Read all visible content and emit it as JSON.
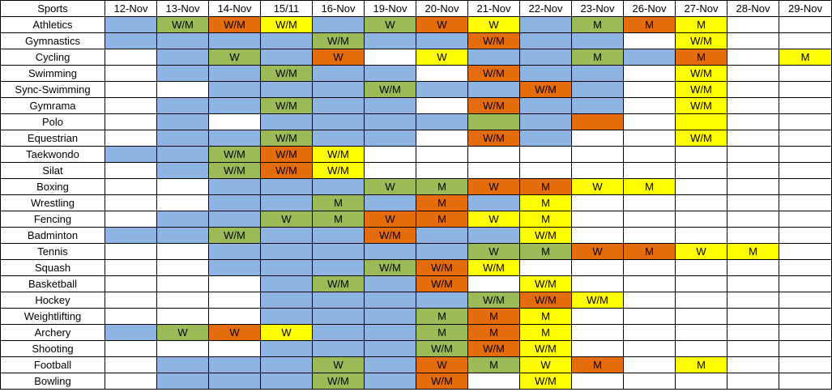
{
  "colors": {
    "b": "#8eb4e3",
    "g": "#9bbb59",
    "o": "#e46c0a",
    "y": "#ffff00",
    "w": "#ffffff"
  },
  "header": {
    "first": "Sports",
    "dates": [
      "12-Nov",
      "13-Nov",
      "14-Nov",
      "15/11",
      "16-Nov",
      "19-Nov",
      "20-Nov",
      "21-Nov",
      "22-Nov",
      "23-Nov",
      "26-Nov",
      "27-Nov",
      "28-Nov",
      "29-Nov"
    ]
  },
  "rows": [
    {
      "sport": "Athletics",
      "cells": [
        [
          "b",
          ""
        ],
        [
          "g",
          "W/M"
        ],
        [
          "o",
          "W/M"
        ],
        [
          "y",
          "W/M"
        ],
        [
          "b",
          ""
        ],
        [
          "g",
          "W"
        ],
        [
          "o",
          "W"
        ],
        [
          "y",
          "W"
        ],
        [
          "b",
          ""
        ],
        [
          "g",
          "M"
        ],
        [
          "o",
          "M"
        ],
        [
          "y",
          "M"
        ],
        [
          "w",
          ""
        ],
        [
          "w",
          ""
        ]
      ]
    },
    {
      "sport": "Gymnastics",
      "cells": [
        [
          "b",
          ""
        ],
        [
          "b",
          ""
        ],
        [
          "b",
          ""
        ],
        [
          "b",
          ""
        ],
        [
          "g",
          "W/M"
        ],
        [
          "b",
          ""
        ],
        [
          "b",
          ""
        ],
        [
          "o",
          "W/M"
        ],
        [
          "b",
          ""
        ],
        [
          "b",
          ""
        ],
        [
          "w",
          ""
        ],
        [
          "y",
          "W/M"
        ],
        [
          "w",
          ""
        ],
        [
          "w",
          ""
        ]
      ]
    },
    {
      "sport": "Cycling",
      "cells": [
        [
          "w",
          ""
        ],
        [
          "b",
          ""
        ],
        [
          "g",
          "W"
        ],
        [
          "b",
          ""
        ],
        [
          "o",
          "W"
        ],
        [
          "w",
          ""
        ],
        [
          "y",
          "W"
        ],
        [
          "b",
          ""
        ],
        [
          "b",
          ""
        ],
        [
          "g",
          "M"
        ],
        [
          "b",
          ""
        ],
        [
          "o",
          "M"
        ],
        [
          "w",
          ""
        ],
        [
          "y",
          "M"
        ]
      ]
    },
    {
      "sport": "Swimming",
      "cells": [
        [
          "w",
          ""
        ],
        [
          "b",
          ""
        ],
        [
          "b",
          ""
        ],
        [
          "g",
          "W/M"
        ],
        [
          "b",
          ""
        ],
        [
          "b",
          ""
        ],
        [
          "w",
          ""
        ],
        [
          "o",
          "W/M"
        ],
        [
          "b",
          ""
        ],
        [
          "b",
          ""
        ],
        [
          "w",
          ""
        ],
        [
          "y",
          "W/M"
        ],
        [
          "w",
          ""
        ],
        [
          "w",
          ""
        ]
      ]
    },
    {
      "sport": "Sync-Swimming",
      "cells": [
        [
          "w",
          ""
        ],
        [
          "w",
          ""
        ],
        [
          "b",
          ""
        ],
        [
          "b",
          ""
        ],
        [
          "b",
          ""
        ],
        [
          "g",
          "W/M"
        ],
        [
          "b",
          ""
        ],
        [
          "b",
          ""
        ],
        [
          "o",
          "W/M"
        ],
        [
          "b",
          ""
        ],
        [
          "w",
          ""
        ],
        [
          "y",
          "W/M"
        ],
        [
          "w",
          ""
        ],
        [
          "w",
          ""
        ]
      ]
    },
    {
      "sport": "Gymrama",
      "cells": [
        [
          "w",
          ""
        ],
        [
          "b",
          ""
        ],
        [
          "b",
          ""
        ],
        [
          "g",
          "W/M"
        ],
        [
          "b",
          ""
        ],
        [
          "b",
          ""
        ],
        [
          "w",
          ""
        ],
        [
          "o",
          "W/M"
        ],
        [
          "b",
          ""
        ],
        [
          "b",
          ""
        ],
        [
          "w",
          ""
        ],
        [
          "y",
          "W/M"
        ],
        [
          "w",
          ""
        ],
        [
          "w",
          ""
        ]
      ]
    },
    {
      "sport": "Polo",
      "cells": [
        [
          "w",
          ""
        ],
        [
          "b",
          ""
        ],
        [
          "w",
          ""
        ],
        [
          "b",
          ""
        ],
        [
          "b",
          ""
        ],
        [
          "b",
          ""
        ],
        [
          "b",
          ""
        ],
        [
          "g",
          ""
        ],
        [
          "b",
          ""
        ],
        [
          "o",
          ""
        ],
        [
          "w",
          ""
        ],
        [
          "y",
          ""
        ],
        [
          "w",
          ""
        ],
        [
          "w",
          ""
        ]
      ]
    },
    {
      "sport": "Equestrian",
      "cells": [
        [
          "w",
          ""
        ],
        [
          "b",
          ""
        ],
        [
          "b",
          ""
        ],
        [
          "g",
          "W/M"
        ],
        [
          "b",
          ""
        ],
        [
          "b",
          ""
        ],
        [
          "w",
          ""
        ],
        [
          "o",
          "W/M"
        ],
        [
          "b",
          ""
        ],
        [
          "w",
          ""
        ],
        [
          "w",
          ""
        ],
        [
          "y",
          "W/M"
        ],
        [
          "w",
          ""
        ],
        [
          "w",
          ""
        ]
      ]
    },
    {
      "sport": "Taekwondo",
      "cells": [
        [
          "b",
          ""
        ],
        [
          "b",
          ""
        ],
        [
          "g",
          "W/M"
        ],
        [
          "o",
          "W/M"
        ],
        [
          "y",
          "W/M"
        ],
        [
          "w",
          ""
        ],
        [
          "w",
          ""
        ],
        [
          "w",
          ""
        ],
        [
          "w",
          ""
        ],
        [
          "w",
          ""
        ],
        [
          "w",
          ""
        ],
        [
          "w",
          ""
        ],
        [
          "w",
          ""
        ],
        [
          "w",
          ""
        ]
      ]
    },
    {
      "sport": "Silat",
      "cells": [
        [
          "w",
          ""
        ],
        [
          "b",
          ""
        ],
        [
          "g",
          "W/M"
        ],
        [
          "o",
          "W/M"
        ],
        [
          "y",
          "W/M"
        ],
        [
          "w",
          ""
        ],
        [
          "w",
          ""
        ],
        [
          "w",
          ""
        ],
        [
          "w",
          ""
        ],
        [
          "w",
          ""
        ],
        [
          "w",
          ""
        ],
        [
          "w",
          ""
        ],
        [
          "w",
          ""
        ],
        [
          "w",
          ""
        ]
      ]
    },
    {
      "sport": "Boxing",
      "cells": [
        [
          "w",
          ""
        ],
        [
          "w",
          ""
        ],
        [
          "b",
          ""
        ],
        [
          "b",
          ""
        ],
        [
          "b",
          ""
        ],
        [
          "g",
          "W"
        ],
        [
          "g",
          "M"
        ],
        [
          "o",
          "W"
        ],
        [
          "o",
          "M"
        ],
        [
          "y",
          "W"
        ],
        [
          "y",
          "M"
        ],
        [
          "w",
          ""
        ],
        [
          "w",
          ""
        ],
        [
          "w",
          ""
        ]
      ]
    },
    {
      "sport": "Wrestling",
      "cells": [
        [
          "w",
          ""
        ],
        [
          "w",
          ""
        ],
        [
          "b",
          ""
        ],
        [
          "b",
          ""
        ],
        [
          "g",
          "M"
        ],
        [
          "b",
          ""
        ],
        [
          "o",
          "M"
        ],
        [
          "b",
          ""
        ],
        [
          "y",
          "M"
        ],
        [
          "w",
          ""
        ],
        [
          "w",
          ""
        ],
        [
          "w",
          ""
        ],
        [
          "w",
          ""
        ],
        [
          "w",
          ""
        ]
      ]
    },
    {
      "sport": "Fencing",
      "cells": [
        [
          "w",
          ""
        ],
        [
          "b",
          ""
        ],
        [
          "b",
          ""
        ],
        [
          "g",
          "W"
        ],
        [
          "g",
          "M"
        ],
        [
          "o",
          "W"
        ],
        [
          "o",
          "M"
        ],
        [
          "y",
          "W"
        ],
        [
          "y",
          "M"
        ],
        [
          "w",
          ""
        ],
        [
          "w",
          ""
        ],
        [
          "w",
          ""
        ],
        [
          "w",
          ""
        ],
        [
          "w",
          ""
        ]
      ]
    },
    {
      "sport": "Badminton",
      "cells": [
        [
          "b",
          ""
        ],
        [
          "b",
          ""
        ],
        [
          "g",
          "W/M"
        ],
        [
          "b",
          ""
        ],
        [
          "b",
          ""
        ],
        [
          "o",
          "W/M"
        ],
        [
          "b",
          ""
        ],
        [
          "b",
          ""
        ],
        [
          "y",
          "W/M"
        ],
        [
          "w",
          ""
        ],
        [
          "w",
          ""
        ],
        [
          "w",
          ""
        ],
        [
          "w",
          ""
        ],
        [
          "w",
          ""
        ]
      ]
    },
    {
      "sport": "Tennis",
      "cells": [
        [
          "w",
          ""
        ],
        [
          "w",
          ""
        ],
        [
          "b",
          ""
        ],
        [
          "b",
          ""
        ],
        [
          "b",
          ""
        ],
        [
          "b",
          ""
        ],
        [
          "b",
          ""
        ],
        [
          "g",
          "W"
        ],
        [
          "g",
          "M"
        ],
        [
          "o",
          "W"
        ],
        [
          "o",
          "M"
        ],
        [
          "y",
          "W"
        ],
        [
          "y",
          "M"
        ],
        [
          "w",
          ""
        ]
      ]
    },
    {
      "sport": "Squash",
      "cells": [
        [
          "w",
          ""
        ],
        [
          "w",
          ""
        ],
        [
          "b",
          ""
        ],
        [
          "b",
          ""
        ],
        [
          "b",
          ""
        ],
        [
          "g",
          "W/M"
        ],
        [
          "o",
          "W/M"
        ],
        [
          "y",
          "W/M"
        ],
        [
          "w",
          ""
        ],
        [
          "w",
          ""
        ],
        [
          "w",
          ""
        ],
        [
          "w",
          ""
        ],
        [
          "w",
          ""
        ],
        [
          "w",
          ""
        ]
      ]
    },
    {
      "sport": "Basketball",
      "cells": [
        [
          "w",
          ""
        ],
        [
          "w",
          ""
        ],
        [
          "w",
          ""
        ],
        [
          "b",
          ""
        ],
        [
          "g",
          "W/M"
        ],
        [
          "b",
          ""
        ],
        [
          "o",
          "W/M"
        ],
        [
          "w",
          ""
        ],
        [
          "y",
          "W/M"
        ],
        [
          "w",
          ""
        ],
        [
          "w",
          ""
        ],
        [
          "w",
          ""
        ],
        [
          "w",
          ""
        ],
        [
          "w",
          ""
        ]
      ]
    },
    {
      "sport": "Hockey",
      "cells": [
        [
          "w",
          ""
        ],
        [
          "w",
          ""
        ],
        [
          "w",
          ""
        ],
        [
          "b",
          ""
        ],
        [
          "b",
          ""
        ],
        [
          "b",
          ""
        ],
        [
          "b",
          ""
        ],
        [
          "g",
          "W/M"
        ],
        [
          "o",
          "W/M"
        ],
        [
          "y",
          "W/M"
        ],
        [
          "w",
          ""
        ],
        [
          "w",
          ""
        ],
        [
          "w",
          ""
        ],
        [
          "w",
          ""
        ]
      ]
    },
    {
      "sport": "Weightlifting",
      "cells": [
        [
          "w",
          ""
        ],
        [
          "w",
          ""
        ],
        [
          "w",
          ""
        ],
        [
          "b",
          ""
        ],
        [
          "b",
          ""
        ],
        [
          "b",
          ""
        ],
        [
          "g",
          "M"
        ],
        [
          "o",
          "M"
        ],
        [
          "y",
          "M"
        ],
        [
          "w",
          ""
        ],
        [
          "w",
          ""
        ],
        [
          "w",
          ""
        ],
        [
          "w",
          ""
        ],
        [
          "w",
          ""
        ]
      ]
    },
    {
      "sport": "Archery",
      "cells": [
        [
          "b",
          ""
        ],
        [
          "g",
          "W"
        ],
        [
          "o",
          "W"
        ],
        [
          "y",
          "W"
        ],
        [
          "b",
          ""
        ],
        [
          "b",
          ""
        ],
        [
          "g",
          "M"
        ],
        [
          "o",
          "M"
        ],
        [
          "y",
          "M"
        ],
        [
          "w",
          ""
        ],
        [
          "w",
          ""
        ],
        [
          "w",
          ""
        ],
        [
          "w",
          ""
        ],
        [
          "w",
          ""
        ]
      ]
    },
    {
      "sport": "Shooting",
      "cells": [
        [
          "w",
          ""
        ],
        [
          "w",
          ""
        ],
        [
          "w",
          ""
        ],
        [
          "b",
          ""
        ],
        [
          "b",
          ""
        ],
        [
          "b",
          ""
        ],
        [
          "g",
          "W/M"
        ],
        [
          "o",
          "W/M"
        ],
        [
          "y",
          "W/M"
        ],
        [
          "w",
          ""
        ],
        [
          "w",
          ""
        ],
        [
          "w",
          ""
        ],
        [
          "w",
          ""
        ],
        [
          "w",
          ""
        ]
      ]
    },
    {
      "sport": "Football",
      "cells": [
        [
          "w",
          ""
        ],
        [
          "b",
          ""
        ],
        [
          "b",
          ""
        ],
        [
          "b",
          ""
        ],
        [
          "g",
          "W"
        ],
        [
          "b",
          ""
        ],
        [
          "o",
          "W"
        ],
        [
          "g",
          "M"
        ],
        [
          "y",
          "W"
        ],
        [
          "o",
          "M"
        ],
        [
          "w",
          ""
        ],
        [
          "y",
          "M"
        ],
        [
          "w",
          ""
        ],
        [
          "w",
          ""
        ]
      ]
    },
    {
      "sport": "Bowling",
      "cells": [
        [
          "w",
          ""
        ],
        [
          "b",
          ""
        ],
        [
          "b",
          ""
        ],
        [
          "b",
          ""
        ],
        [
          "g",
          "W/M"
        ],
        [
          "b",
          ""
        ],
        [
          "o",
          "W/M"
        ],
        [
          "w",
          ""
        ],
        [
          "y",
          "W/M"
        ],
        [
          "w",
          ""
        ],
        [
          "w",
          ""
        ],
        [
          "w",
          ""
        ],
        [
          "w",
          ""
        ],
        [
          "w",
          ""
        ]
      ]
    }
  ]
}
